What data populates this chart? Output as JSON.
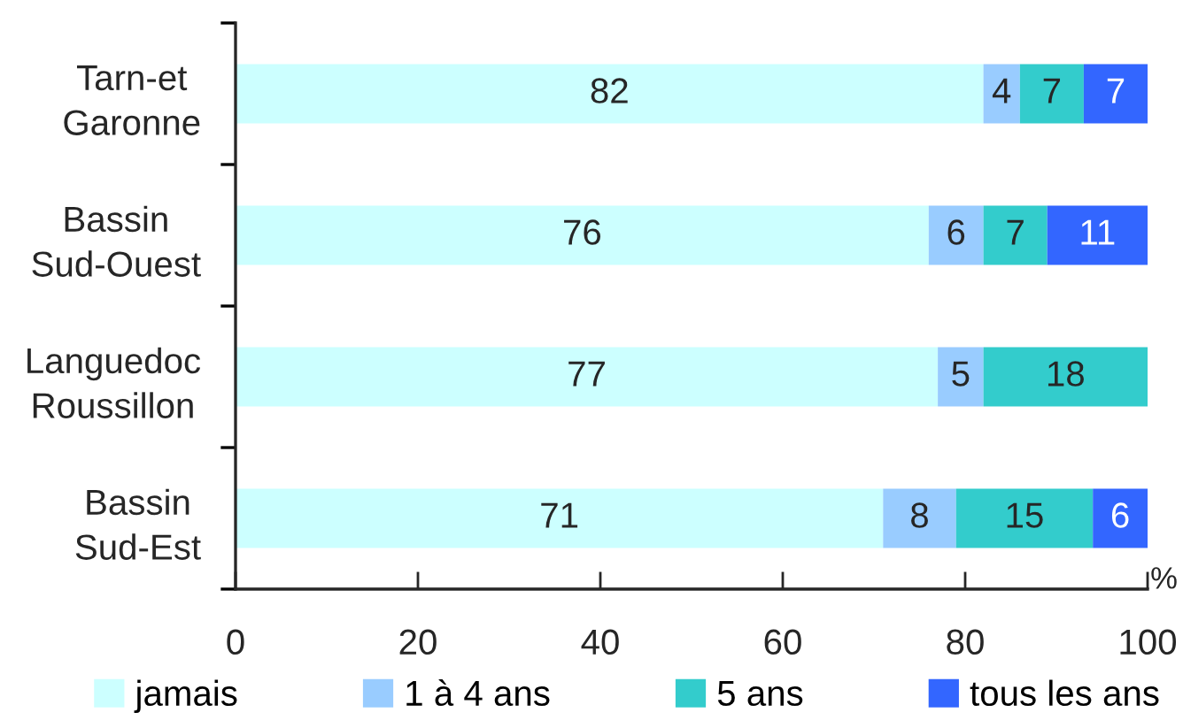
{
  "chart_data": {
    "type": "bar",
    "orientation": "horizontal",
    "stacked": true,
    "data_labels": true,
    "legend": "bottom",
    "xlabel": "%",
    "categories": [
      "Tarn-et\nGaronne",
      "Bassin\nSud-Ouest",
      "Languedoc\nRoussillon",
      "Bassin\nSud-Est"
    ],
    "series": [
      {
        "name": "jamais",
        "color": "#ccffff",
        "values": [
          82,
          76,
          77,
          71
        ]
      },
      {
        "name": "1 à 4 ans",
        "color": "#99ccff",
        "values": [
          4,
          6,
          5,
          8
        ]
      },
      {
        "name": "5 ans",
        "color": "#33cccc",
        "values": [
          7,
          7,
          18,
          15
        ]
      },
      {
        "name": "tous les ans",
        "color": "#3366ff",
        "values": [
          7,
          11,
          null,
          6
        ]
      }
    ],
    "xlim": [
      0,
      100
    ],
    "xticks": [
      0,
      20,
      40,
      60,
      80,
      100
    ]
  }
}
